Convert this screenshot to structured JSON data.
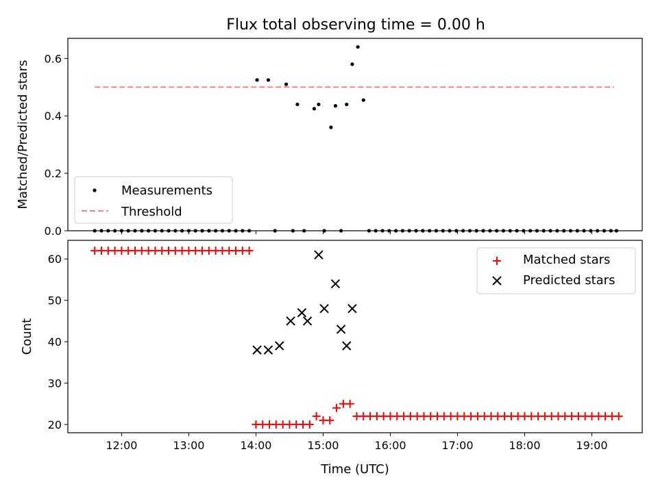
{
  "chart_data": [
    {
      "type": "scatter",
      "title": "Flux total observing time = 0.00 h",
      "xlabel": "",
      "ylabel": "Matched/Predicted stars",
      "ylim": [
        0,
        0.67
      ],
      "xlim": [
        "11:12",
        "19:45"
      ],
      "yticks": [
        "0.0",
        "0.2",
        "0.4",
        "0.6"
      ],
      "ytick_values": [
        0,
        0.2,
        0.4,
        0.6
      ],
      "legend": {
        "placement": "lower-left",
        "entries": [
          "Measurements",
          "Threshold"
        ]
      },
      "threshold": {
        "name": "Threshold",
        "value": 0.5,
        "x_range": [
          "11:36",
          "19:20"
        ],
        "color": "#ff7f7f",
        "style": "dashed"
      },
      "measurements": {
        "name": "Measurements",
        "color": "#000000",
        "x": [
          "11:36",
          "11:42",
          "11:48",
          "11:54",
          "12:00",
          "12:06",
          "12:12",
          "12:18",
          "12:24",
          "12:30",
          "12:36",
          "12:42",
          "12:48",
          "12:54",
          "13:00",
          "13:06",
          "13:12",
          "13:18",
          "13:24",
          "13:30",
          "13:36",
          "13:42",
          "13:48",
          "13:54",
          "14:01",
          "14:11",
          "14:17",
          "14:27",
          "14:33",
          "14:37",
          "14:43",
          "14:52",
          "14:56",
          "15:01",
          "15:07",
          "15:11",
          "15:16",
          "15:21",
          "15:26",
          "15:31",
          "15:36",
          "15:41",
          "15:47",
          "15:53",
          "15:59",
          "16:05",
          "16:11",
          "16:17",
          "16:23",
          "16:29",
          "16:35",
          "16:41",
          "16:47",
          "16:53",
          "16:59",
          "17:05",
          "17:11",
          "17:17",
          "17:23",
          "17:29",
          "17:35",
          "17:41",
          "17:47",
          "17:53",
          "17:59",
          "18:05",
          "18:11",
          "18:17",
          "18:23",
          "18:29",
          "18:35",
          "18:41",
          "18:47",
          "18:53",
          "18:59",
          "19:05",
          "19:11",
          "19:17",
          "19:22"
        ],
        "y": [
          0,
          0,
          0,
          0,
          0,
          0,
          0,
          0,
          0,
          0,
          0,
          0,
          0,
          0,
          0,
          0,
          0,
          0,
          0,
          0,
          0,
          0,
          0,
          0,
          0.525,
          0.525,
          0,
          0.51,
          0,
          0.44,
          0,
          0.425,
          0.44,
          0,
          0.36,
          0.435,
          0,
          0.44,
          0.58,
          0.64,
          0.455,
          0,
          0,
          0,
          0,
          0,
          0,
          0,
          0,
          0,
          0,
          0,
          0,
          0,
          0,
          0,
          0,
          0,
          0,
          0,
          0,
          0,
          0,
          0,
          0,
          0,
          0,
          0,
          0,
          0,
          0,
          0,
          0,
          0,
          0,
          0,
          0,
          0,
          0
        ]
      }
    },
    {
      "type": "scatter",
      "title": "",
      "xlabel": "Time (UTC)",
      "ylabel": "Count",
      "ylim": [
        18,
        64.5
      ],
      "xlim": [
        "11:12",
        "19:45"
      ],
      "yticks": [
        "20",
        "30",
        "40",
        "50",
        "60"
      ],
      "ytick_values": [
        20,
        30,
        40,
        50,
        60
      ],
      "xticks": [
        "12:00",
        "13:00",
        "14:00",
        "15:00",
        "16:00",
        "17:00",
        "18:00",
        "19:00"
      ],
      "legend": {
        "placement": "top-right",
        "entries": [
          "Matched stars",
          "Predicted stars"
        ]
      },
      "series": [
        {
          "name": "Matched stars",
          "marker": "plus",
          "color": "#ff0000",
          "x": [
            "11:36",
            "11:42",
            "11:48",
            "11:54",
            "12:00",
            "12:06",
            "12:12",
            "12:18",
            "12:24",
            "12:30",
            "12:36",
            "12:42",
            "12:48",
            "12:54",
            "13:00",
            "13:06",
            "13:12",
            "13:18",
            "13:24",
            "13:30",
            "13:36",
            "13:42",
            "13:48",
            "13:54",
            "14:00",
            "14:06",
            "14:12",
            "14:18",
            "14:24",
            "14:30",
            "14:36",
            "14:42",
            "14:48",
            "14:54",
            "15:00",
            "15:06",
            "15:12",
            "15:18",
            "15:24",
            "15:30",
            "15:36",
            "15:42",
            "15:48",
            "15:54",
            "16:00",
            "16:06",
            "16:12",
            "16:18",
            "16:24",
            "16:30",
            "16:36",
            "16:42",
            "16:48",
            "16:54",
            "17:00",
            "17:06",
            "17:12",
            "17:18",
            "17:24",
            "17:30",
            "17:36",
            "17:42",
            "17:48",
            "17:54",
            "18:00",
            "18:06",
            "18:12",
            "18:18",
            "18:24",
            "18:30",
            "18:36",
            "18:42",
            "18:48",
            "18:54",
            "19:00",
            "19:06",
            "19:12",
            "19:18",
            "19:24"
          ],
          "y": [
            62,
            62,
            62,
            62,
            62,
            62,
            62,
            62,
            62,
            62,
            62,
            62,
            62,
            62,
            62,
            62,
            62,
            62,
            62,
            62,
            62,
            62,
            62,
            62,
            20,
            20,
            20,
            20,
            20,
            20,
            20,
            20,
            20,
            22,
            21,
            21,
            24,
            25,
            25,
            22,
            22,
            22,
            22,
            22,
            22,
            22,
            22,
            22,
            22,
            22,
            22,
            22,
            22,
            22,
            22,
            22,
            22,
            22,
            22,
            22,
            22,
            22,
            22,
            22,
            22,
            22,
            22,
            22,
            22,
            22,
            22,
            22,
            22,
            22,
            22,
            22,
            22,
            22,
            22
          ]
        },
        {
          "name": "Predicted stars",
          "marker": "x",
          "color": "#000000",
          "x": [
            "14:01",
            "14:11",
            "14:21",
            "14:31",
            "14:41",
            "14:46",
            "14:56",
            "15:01",
            "15:11",
            "15:16",
            "15:21",
            "15:26"
          ],
          "y": [
            38,
            38,
            39,
            45,
            47,
            45,
            61,
            48,
            54,
            43,
            39,
            48
          ]
        }
      ]
    }
  ]
}
